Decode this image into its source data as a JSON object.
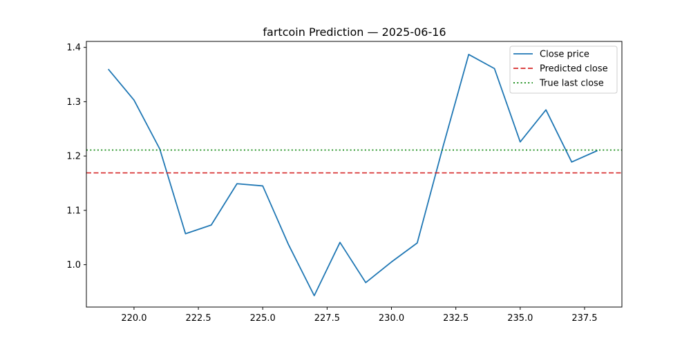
{
  "chart_data": {
    "type": "line",
    "title": "fartcoin Prediction — 2025-06-16",
    "xlabel": "",
    "ylabel": "",
    "xlim": [
      218.15,
      238.95
    ],
    "ylim": [
      0.922,
      1.411
    ],
    "x_ticks": [
      220.0,
      222.5,
      225.0,
      227.5,
      230.0,
      232.5,
      235.0,
      237.5
    ],
    "x_tick_labels": [
      "220.0",
      "222.5",
      "225.0",
      "227.5",
      "230.0",
      "232.5",
      "235.0",
      "237.5"
    ],
    "y_ticks": [
      1.0,
      1.1,
      1.2,
      1.3,
      1.4
    ],
    "y_tick_labels": [
      "1.0",
      "1.1",
      "1.2",
      "1.3",
      "1.4"
    ],
    "grid": false,
    "legend_position": "top-right",
    "series": [
      {
        "name": "Close price",
        "style": "solid",
        "color": "#1f77b4",
        "x": [
          219,
          220,
          221,
          222,
          223,
          224,
          225,
          226,
          227,
          228,
          229,
          230,
          231,
          232,
          233,
          234,
          235,
          236,
          237,
          238
        ],
        "y": [
          1.36,
          1.303,
          1.213,
          1.057,
          1.073,
          1.149,
          1.145,
          1.037,
          0.943,
          1.041,
          0.967,
          1.005,
          1.04,
          1.217,
          1.387,
          1.361,
          1.226,
          1.285,
          1.189,
          1.21
        ]
      },
      {
        "name": "Predicted close",
        "style": "dashed",
        "color": "#d62728",
        "hline": 1.169
      },
      {
        "name": "True last close",
        "style": "dotted",
        "color": "#008000",
        "hline": 1.211
      }
    ]
  }
}
